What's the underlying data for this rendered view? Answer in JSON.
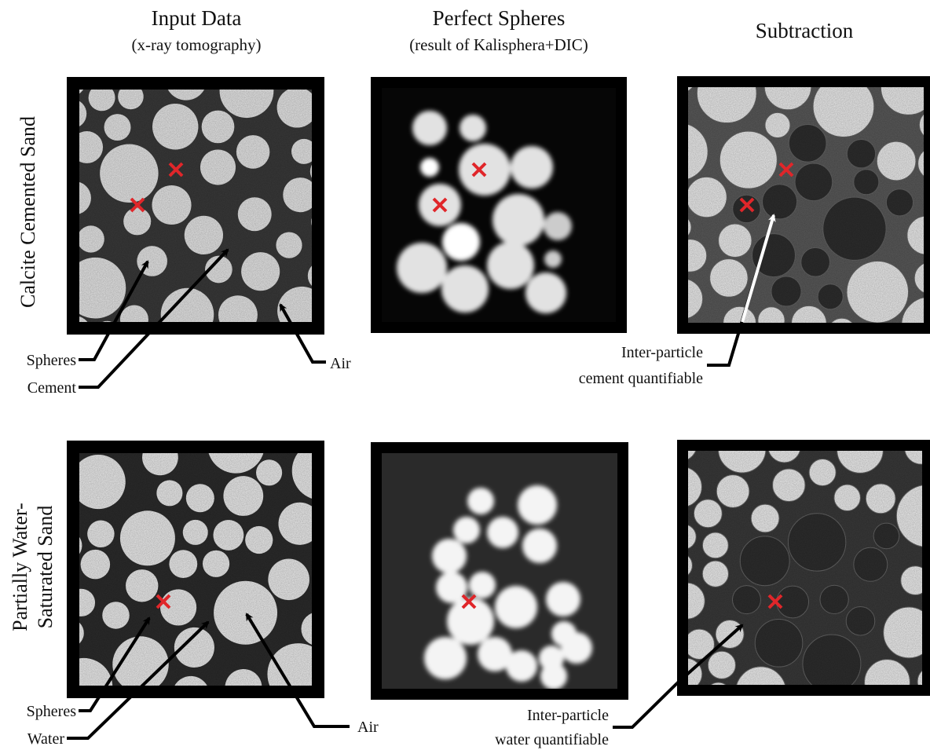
{
  "columns": [
    {
      "title": "Input Data",
      "subtitle": "(x-ray tomography)"
    },
    {
      "title": "Perfect Spheres",
      "subtitle": "(result of Kalisphera+DIC)"
    },
    {
      "title": "Subtraction"
    }
  ],
  "rows": [
    {
      "label_lines": [
        "Calcite Cemented Sand"
      ],
      "input_annotations": [
        "Spheres",
        "Cement",
        "Air"
      ],
      "subtraction_annotation": [
        "Inter-particle",
        "cement quantifiable"
      ]
    },
    {
      "label_lines": [
        "Partially Water-",
        "Saturated Sand"
      ],
      "input_annotations": [
        "Spheres",
        "Water",
        "Air"
      ],
      "subtraction_annotation": [
        "Inter-particle",
        "water quantifiable"
      ]
    }
  ]
}
